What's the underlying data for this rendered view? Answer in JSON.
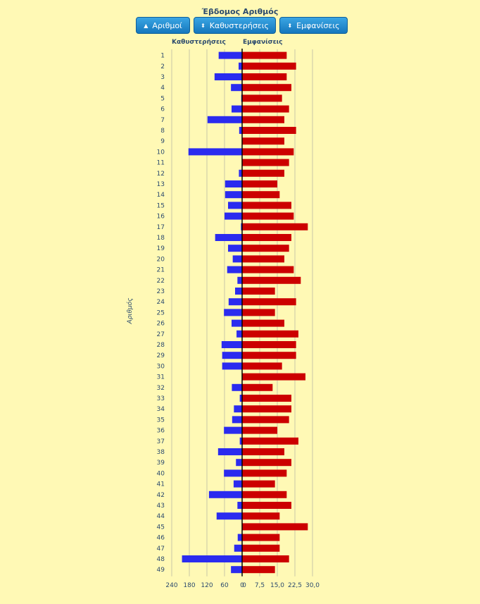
{
  "title": "Έβδομος Αριθμός",
  "buttons": [
    {
      "label": "Αριθμοί",
      "icon": "sort-up-icon",
      "glyph": "▲"
    },
    {
      "label": "Καθυστερήσεις",
      "icon": "sort-both-icon",
      "glyph": "⬍"
    },
    {
      "label": "Εμφανίσεις",
      "icon": "sort-both-icon",
      "glyph": "⬍"
    }
  ],
  "chart_data": {
    "type": "bar",
    "orientation": "horizontal",
    "ylabel": "Αριθμός",
    "categories": [
      "1",
      "2",
      "3",
      "4",
      "5",
      "6",
      "7",
      "8",
      "9",
      "10",
      "11",
      "12",
      "13",
      "14",
      "15",
      "16",
      "17",
      "18",
      "19",
      "20",
      "21",
      "22",
      "23",
      "24",
      "25",
      "26",
      "27",
      "28",
      "29",
      "30",
      "31",
      "32",
      "33",
      "34",
      "35",
      "36",
      "37",
      "38",
      "39",
      "40",
      "41",
      "42",
      "43",
      "44",
      "45",
      "46",
      "47",
      "48",
      "49"
    ],
    "series": [
      {
        "name": "Καθυστερήσεις",
        "color": "#2b2bef",
        "axis_ticks": [
          240,
          180,
          120,
          60,
          0
        ],
        "xlim": [
          0,
          240
        ],
        "values": [
          80,
          12,
          94,
          38,
          3,
          36,
          118,
          10,
          0,
          183,
          0,
          11,
          58,
          58,
          48,
          60,
          4,
          92,
          48,
          32,
          51,
          16,
          24,
          46,
          62,
          36,
          19,
          70,
          68,
          68,
          0,
          35,
          8,
          28,
          34,
          62,
          8,
          82,
          21,
          62,
          29,
          113,
          16,
          87,
          0,
          15,
          27,
          205,
          38
        ]
      },
      {
        "name": "Εμφανίσεις",
        "color": "#cc0000",
        "axis_ticks": [
          "0",
          "7,5",
          "15,0",
          "22,5",
          "30,0"
        ],
        "xlim": [
          0,
          30
        ],
        "values": [
          19,
          23,
          19,
          21,
          17,
          20,
          18,
          23,
          18,
          22,
          20,
          18,
          15,
          16,
          21,
          22,
          28,
          21,
          20,
          18,
          22,
          25,
          14,
          23,
          14,
          18,
          24,
          23,
          23,
          17,
          27,
          13,
          21,
          21,
          20,
          15,
          24,
          18,
          21,
          19,
          14,
          19,
          21,
          16,
          28,
          16,
          16,
          20,
          14
        ]
      }
    ],
    "grid": true
  }
}
